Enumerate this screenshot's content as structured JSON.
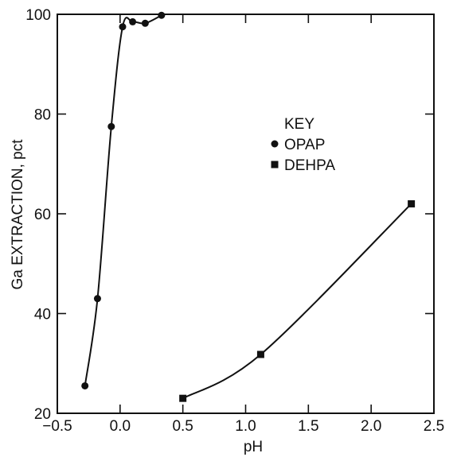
{
  "chart_data": {
    "type": "scatter",
    "title": "",
    "xlabel": "pH",
    "ylabel": "Ga EXTRACTION, pct",
    "xlim": [
      -0.5,
      2.5
    ],
    "ylim": [
      20,
      100
    ],
    "xticks": [
      -0.5,
      0.0,
      0.5,
      1.0,
      1.5,
      2.0,
      2.5
    ],
    "xtick_labels": [
      "−0.5",
      "0.0",
      "0.5",
      "1.0",
      "1.5",
      "2.0",
      "2.5"
    ],
    "yticks": [
      20,
      40,
      60,
      80,
      100
    ],
    "ytick_labels": [
      "20",
      "40",
      "60",
      "80",
      "100"
    ],
    "grid": false,
    "legend": {
      "title": "KEY",
      "placement": "center-right"
    },
    "series": [
      {
        "name": "OPAP",
        "marker": "circle",
        "x": [
          -0.28,
          -0.18,
          -0.07,
          0.02,
          0.1,
          0.2,
          0.33
        ],
        "y": [
          25.5,
          43,
          77.5,
          97.5,
          98.5,
          98.2,
          99.8
        ]
      },
      {
        "name": "DEHPA",
        "marker": "square",
        "x": [
          0.5,
          1.12,
          2.32
        ],
        "y": [
          23,
          31.8,
          62
        ]
      }
    ],
    "colors": {
      "ink": "#111111",
      "background": "#ffffff"
    }
  }
}
